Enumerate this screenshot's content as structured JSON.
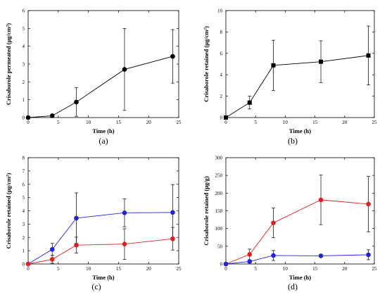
{
  "chart_data": [
    {
      "type": "line",
      "panel_label": "(a)",
      "xlabel": "Time (h)",
      "ylabel": "Crisaborole permeated (μg/cm²)",
      "xlim": [
        0,
        25
      ],
      "ylim": [
        0,
        6
      ],
      "xticks": [
        0,
        5,
        10,
        15,
        20,
        25
      ],
      "yticks": [
        0,
        1,
        2,
        3,
        4,
        5,
        6
      ],
      "grid": false,
      "series": [
        {
          "color": "#000000",
          "marker": "circle",
          "x": [
            0,
            4,
            8,
            16,
            24
          ],
          "y": [
            0,
            0.1,
            0.87,
            2.7,
            3.43
          ],
          "err": [
            0,
            0.1,
            0.8,
            2.3,
            1.5
          ]
        }
      ]
    },
    {
      "type": "line",
      "panel_label": "(b)",
      "xlabel": "Time (h)",
      "ylabel": "Crisaborole retained (μg/cm²)",
      "xlim": [
        0,
        25
      ],
      "ylim": [
        0,
        10
      ],
      "xticks": [
        0,
        5,
        10,
        15,
        20,
        25
      ],
      "yticks": [
        0,
        2,
        4,
        6,
        8,
        10
      ],
      "grid": false,
      "series": [
        {
          "color": "#000000",
          "marker": "square",
          "x": [
            0,
            4,
            8,
            16,
            24
          ],
          "y": [
            0,
            1.4,
            4.88,
            5.22,
            5.8
          ],
          "err": [
            0,
            0.6,
            2.35,
            1.95,
            2.75
          ]
        }
      ]
    },
    {
      "type": "line",
      "panel_label": "(c)",
      "xlabel": "Time (h)",
      "ylabel": "Crisaborole retained (μg/cm²)",
      "xlim": [
        0,
        25
      ],
      "ylim": [
        0,
        8
      ],
      "xticks": [
        0,
        5,
        10,
        15,
        20,
        25
      ],
      "yticks": [
        0,
        1,
        2,
        3,
        4,
        5,
        6,
        7,
        8
      ],
      "grid": false,
      "series": [
        {
          "color": "#2222dd",
          "marker": "circle",
          "x": [
            0,
            4,
            8,
            16,
            24
          ],
          "y": [
            0,
            1.1,
            3.45,
            3.85,
            3.88
          ],
          "err": [
            0,
            0.45,
            1.9,
            1.05,
            2.1
          ]
        },
        {
          "color": "#dd2222",
          "marker": "circle",
          "x": [
            0,
            4,
            8,
            16,
            24
          ],
          "y": [
            0,
            0.35,
            1.42,
            1.5,
            1.9
          ],
          "err": [
            0,
            0.3,
            0.6,
            1.15,
            0.85
          ]
        }
      ]
    },
    {
      "type": "line",
      "panel_label": "(d)",
      "xlabel": "Time (h)",
      "ylabel": "Crisaborole retained (μg/g)",
      "xlim": [
        0,
        25
      ],
      "ylim": [
        0,
        300
      ],
      "xticks": [
        0,
        5,
        10,
        15,
        20,
        25
      ],
      "yticks": [
        0,
        50,
        100,
        150,
        200,
        250,
        300
      ],
      "grid": false,
      "series": [
        {
          "color": "#dd2222",
          "marker": "circle",
          "x": [
            0,
            4,
            8,
            16,
            24
          ],
          "y": [
            0,
            27,
            116,
            181,
            169
          ],
          "err": [
            0,
            15,
            42,
            70,
            78
          ]
        },
        {
          "color": "#2222dd",
          "marker": "circle",
          "x": [
            0,
            4,
            8,
            16,
            24
          ],
          "y": [
            0,
            7,
            24,
            23,
            26
          ],
          "err": [
            0,
            4,
            14,
            3,
            14
          ]
        }
      ]
    }
  ]
}
